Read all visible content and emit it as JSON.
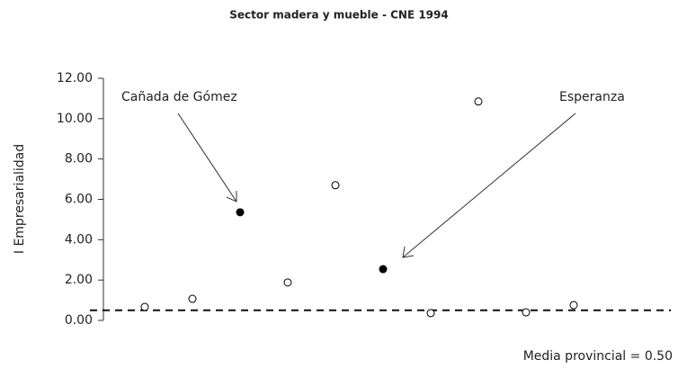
{
  "chart_data": {
    "type": "scatter",
    "title": "Sector madera y mueble - CNE 1994",
    "ylabel": "I Empresarialidad",
    "categories": [
      null,
      null,
      null,
      null,
      null,
      null,
      null,
      null,
      null,
      null
    ],
    "values": [
      0.67,
      1.07,
      5.36,
      1.88,
      6.7,
      2.54,
      0.36,
      10.85,
      0.4,
      0.76
    ],
    "filled": [
      false,
      false,
      true,
      false,
      false,
      true,
      false,
      false,
      false,
      false
    ],
    "color": "#000000",
    "ylim": [
      0,
      12
    ],
    "yticks": [
      {
        "value": 0,
        "label": "0.00"
      },
      {
        "value": 2,
        "label": "2.00"
      },
      {
        "value": 4,
        "label": "4.00"
      },
      {
        "value": 6,
        "label": "6.00"
      },
      {
        "value": 8,
        "label": "8.00"
      },
      {
        "value": 10,
        "label": "10.00"
      },
      {
        "value": 12,
        "label": "12.00"
      }
    ],
    "mean": {
      "value": 0.5,
      "label": "Media provincial = 0.50"
    },
    "annotations": [
      "Cañada de Gómez",
      "Esperanza"
    ]
  }
}
